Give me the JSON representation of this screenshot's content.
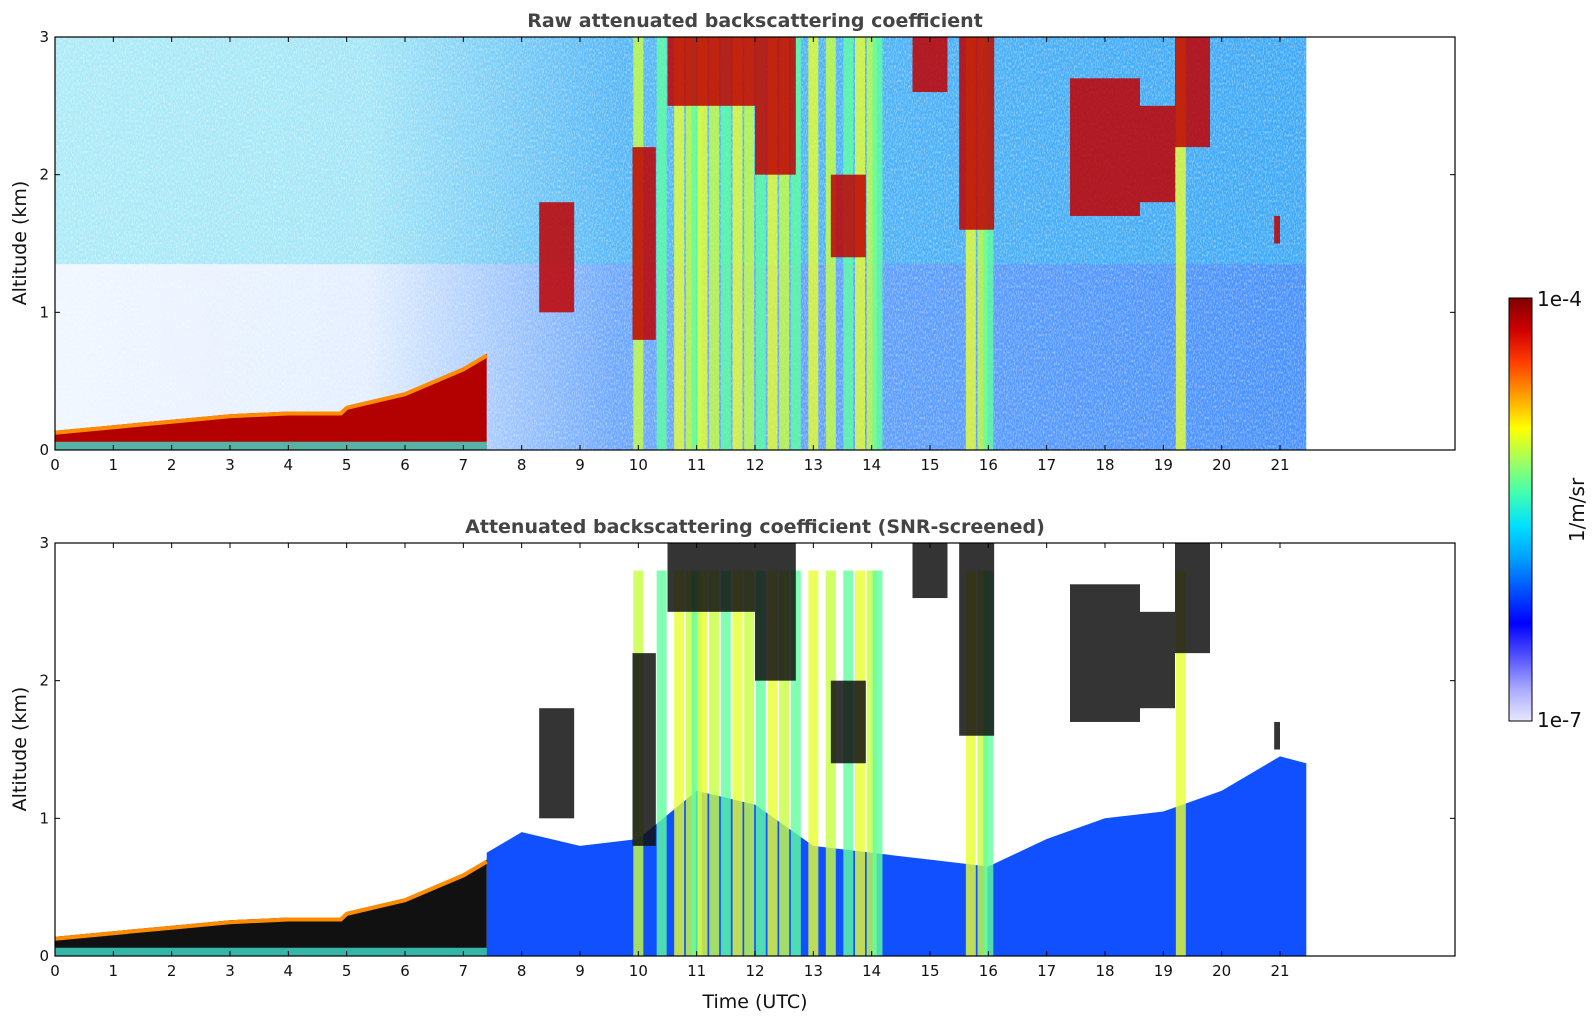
{
  "chart_data": [
    {
      "type": "heatmap",
      "title": "Raw attenuated backscattering coefficient",
      "xlabel": "",
      "ylabel": "Altitude (km)",
      "xlim": [
        0,
        24
      ],
      "ylim": [
        0,
        3
      ],
      "x_ticks": [
        "0",
        "1",
        "2",
        "3",
        "4",
        "5",
        "6",
        "7",
        "8",
        "9",
        "10",
        "11",
        "12",
        "13",
        "14",
        "15",
        "16",
        "17",
        "18",
        "19",
        "20",
        "21"
      ],
      "y_ticks": [
        "0",
        "1",
        "2",
        "3"
      ],
      "data_extent_hours": 21.45,
      "colorscale": "jet",
      "features": {
        "boundary_layer_top_km": [
          [
            0,
            0.14
          ],
          [
            1,
            0.18
          ],
          [
            2,
            0.22
          ],
          [
            3,
            0.26
          ],
          [
            4,
            0.28
          ],
          [
            4.9,
            0.28
          ],
          [
            5,
            0.32
          ],
          [
            6,
            0.42
          ],
          [
            7,
            0.6
          ],
          [
            7.4,
            0.7
          ]
        ],
        "precipitation_streak_hours": [
          10.0,
          10.4,
          10.7,
          10.9,
          11.0,
          11.1,
          11.3,
          11.5,
          11.7,
          11.9,
          12.1,
          12.3,
          12.5,
          12.7,
          13.0,
          13.3,
          13.6,
          13.8,
          14.0,
          14.1,
          15.7,
          15.9,
          16.0,
          19.3
        ],
        "upper_cloud_segments": [
          [
            10.5,
            12.0,
            2.5,
            3.0
          ],
          [
            9.9,
            10.3,
            0.8,
            2.2
          ],
          [
            8.3,
            8.9,
            1.0,
            1.8
          ],
          [
            12.0,
            12.7,
            2.0,
            3.0
          ],
          [
            13.3,
            13.9,
            1.4,
            2.0
          ],
          [
            14.7,
            15.3,
            2.6,
            3.0
          ],
          [
            15.5,
            16.1,
            1.6,
            3.0
          ],
          [
            17.4,
            18.6,
            1.7,
            2.7
          ],
          [
            18.6,
            19.2,
            1.8,
            2.5
          ],
          [
            19.2,
            19.8,
            2.2,
            3.0
          ],
          [
            20.9,
            21.0,
            1.5,
            1.7
          ]
        ]
      }
    },
    {
      "type": "heatmap",
      "title": "Attenuated backscattering coefficient (SNR-screened)",
      "xlabel": "Time (UTC)",
      "ylabel": "Altitude (km)",
      "xlim": [
        0,
        24
      ],
      "ylim": [
        0,
        3
      ],
      "x_ticks": [
        "0",
        "1",
        "2",
        "3",
        "4",
        "5",
        "6",
        "7",
        "8",
        "9",
        "10",
        "11",
        "12",
        "13",
        "14",
        "15",
        "16",
        "17",
        "18",
        "19",
        "20",
        "21"
      ],
      "y_ticks": [
        "0",
        "1",
        "2",
        "3"
      ],
      "data_extent_hours": 21.45,
      "colorscale": "jet",
      "features": {
        "screened_top_km": [
          [
            7.4,
            0.75
          ],
          [
            8,
            0.9
          ],
          [
            9,
            0.8
          ],
          [
            10,
            0.85
          ],
          [
            11,
            1.2
          ],
          [
            12,
            1.1
          ],
          [
            13,
            0.8
          ],
          [
            14,
            0.75
          ],
          [
            15,
            0.7
          ],
          [
            16,
            0.65
          ],
          [
            17,
            0.85
          ],
          [
            18,
            1.0
          ],
          [
            19,
            1.05
          ],
          [
            20,
            1.2
          ],
          [
            21,
            1.45
          ],
          [
            21.45,
            1.4
          ]
        ]
      }
    }
  ],
  "colorbar": {
    "label": "1/m/sr",
    "max_label": "1e-4",
    "min_label": "1e-7",
    "colors": [
      "#e8e8ff",
      "#a8a8ff",
      "#5050ff",
      "#0000ff",
      "#0050ff",
      "#00a0ff",
      "#00e0ff",
      "#40ffb0",
      "#a0ff60",
      "#ffff00",
      "#ffa000",
      "#ff4000",
      "#d00000",
      "#800000"
    ]
  }
}
